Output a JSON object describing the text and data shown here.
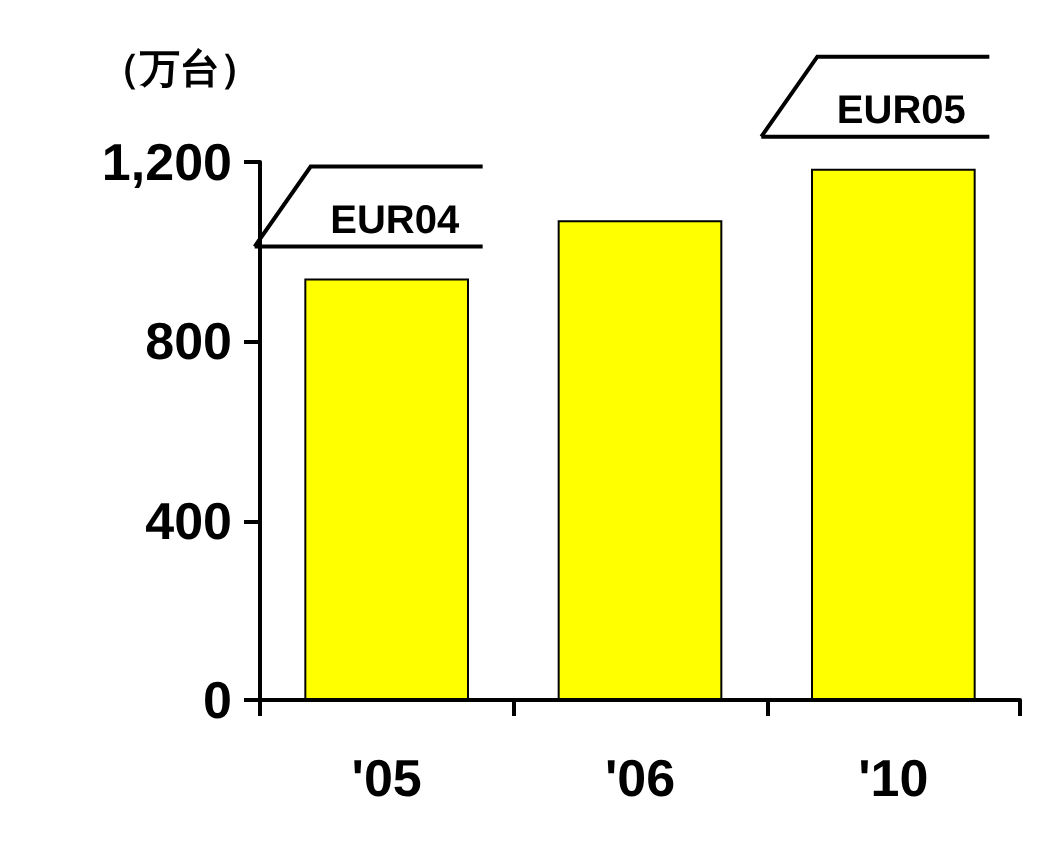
{
  "chart_data": {
    "type": "bar",
    "ylabel": "（万台）",
    "categories": [
      "'05",
      "'06",
      "'10"
    ],
    "values": [
      940,
      1070,
      1185
    ],
    "color": "#ffff00",
    "ylim": [
      0,
      1200
    ],
    "yticks": [
      0,
      400,
      800,
      {
        "value": 1200,
        "label": "1,200"
      }
    ],
    "grid": false,
    "annotations": [
      {
        "text": "EUR04",
        "x": "'05",
        "y": 940
      },
      {
        "text": "EUR05",
        "x": "'10",
        "y": 1185
      }
    ]
  }
}
